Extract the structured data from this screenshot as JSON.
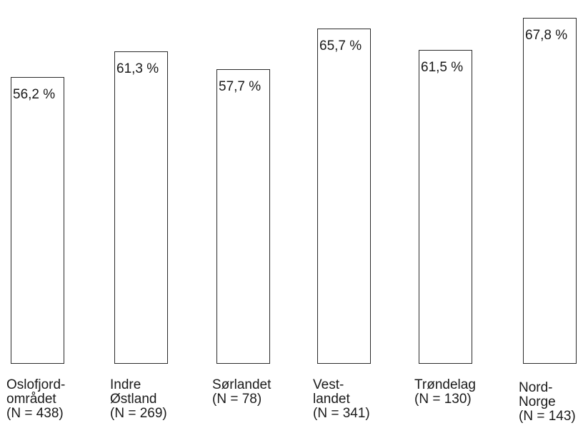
{
  "chart_data": {
    "type": "bar",
    "categories": [
      "Oslofjord-\nområdet",
      "Indre\nØstland",
      "Sørlandet",
      "Vest-\nlandet",
      "Trøndelag",
      "Nord-\nNorge"
    ],
    "sample_sizes": [
      "(N = 438)",
      "(N = 269)",
      "(N = 78)",
      "(N = 341)",
      "(N = 130)",
      "(N = 143)"
    ],
    "values": [
      56.2,
      61.3,
      57.7,
      65.7,
      61.5,
      67.8
    ],
    "value_labels": [
      "56,2 %",
      "61,3 %",
      "57,7 %",
      "65,7 %",
      "61,5 %",
      "67,8 %"
    ],
    "title": "",
    "xlabel": "",
    "ylabel": "",
    "unit": "%",
    "grid": false,
    "legend": "none",
    "colors": {
      "bar_fill": "#ffffff",
      "bar_stroke": "#2a2a2a"
    }
  }
}
